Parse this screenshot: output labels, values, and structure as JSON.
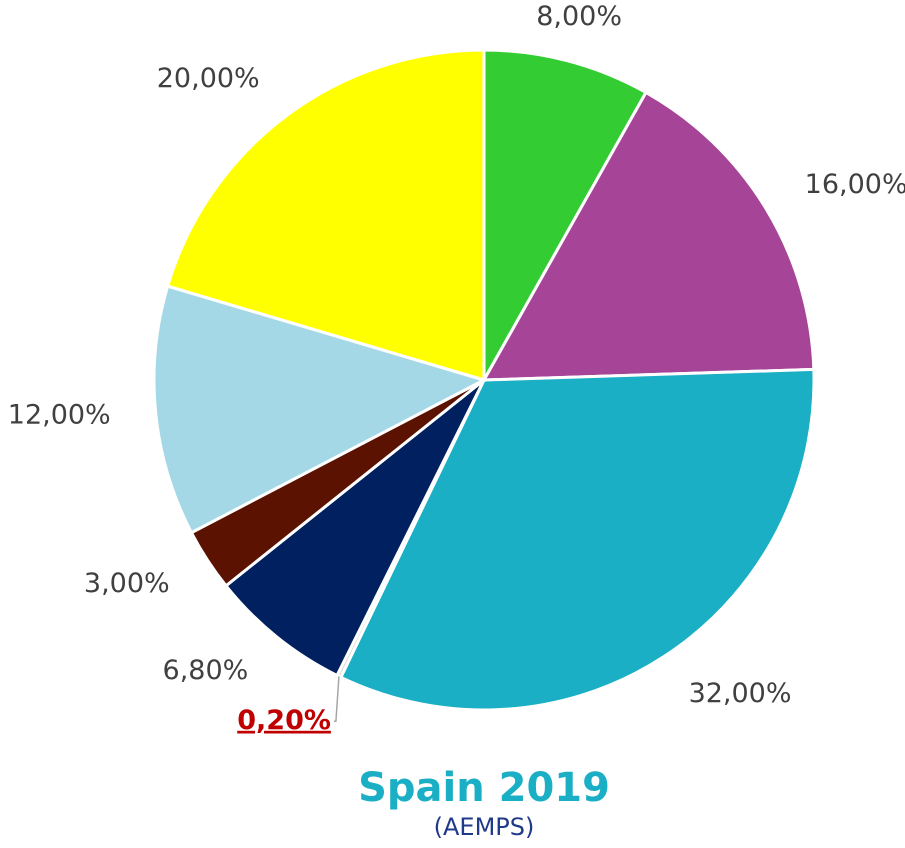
{
  "chart_data": {
    "type": "pie",
    "title": "Spain 2019",
    "subtitle": "(AEMPS)",
    "values": [
      8,
      16,
      32,
      0.2,
      6.8,
      3,
      12,
      20
    ],
    "value_labels": [
      "8,00%",
      "16,00%",
      "32,00%",
      "0,20%",
      "6,80%",
      "3,00%",
      "12,00%",
      "20,00%"
    ],
    "colors": [
      "#33cc33",
      "#a64598",
      "#1aafc4",
      "#d9d9d9",
      "#002060",
      "#5c1200",
      "#a5d8e6",
      "#ffff00"
    ]
  }
}
